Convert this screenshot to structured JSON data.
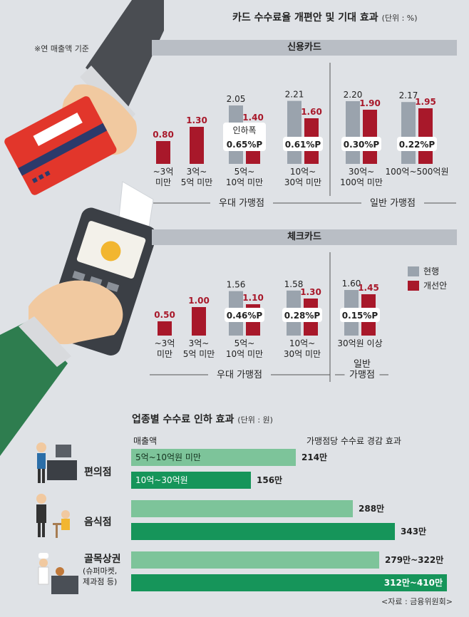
{
  "colors": {
    "current": "#9aa3ad",
    "improved": "#a8182a",
    "bar_light": "#7dc49a",
    "bar_dark": "#16955a"
  },
  "header": {
    "title": "카드 수수료율 개편안 및 기대 효과",
    "unit": "(단위 : %)",
    "note": "※연 매출액 기준"
  },
  "credit": {
    "band": "신용카드"
  },
  "check": {
    "band": "체크카드"
  },
  "legend": {
    "current": "현행",
    "improved": "개선안"
  },
  "groups": {
    "preferred": "우대 가맹점",
    "general": "일반 가맹점",
    "general_two_line": [
      "일반",
      "가맹점"
    ]
  },
  "reduction_prefix": "인하폭",
  "chart_data": [
    {
      "type": "bar",
      "title": "신용카드",
      "categories": [
        [
          "~3억",
          "미만"
        ],
        [
          "3억~",
          "5억 미만"
        ],
        [
          "5억~",
          "10억 미만"
        ],
        [
          "10억~",
          "30억 미만"
        ],
        [
          "30억~",
          "100억 미만"
        ],
        [
          "100억~500억원"
        ]
      ],
      "series": [
        {
          "name": "현행",
          "values": [
            null,
            null,
            2.05,
            2.21,
            2.2,
            2.17
          ]
        },
        {
          "name": "개선안",
          "values": [
            0.8,
            1.3,
            1.4,
            1.6,
            1.9,
            1.95
          ]
        }
      ],
      "value_labels": [
        {
          "cur": null,
          "imp": "0.80"
        },
        {
          "cur": null,
          "imp": "1.30"
        },
        {
          "cur": "2.05",
          "imp": "1.40"
        },
        {
          "cur": "2.21",
          "imp": "1.60"
        },
        {
          "cur": "2.20",
          "imp": "1.90"
        },
        {
          "cur": "2.17",
          "imp": "1.95"
        }
      ],
      "reductions": [
        null,
        null,
        "0.65%P",
        "0.61%P",
        "0.30%P",
        "0.22%P"
      ],
      "unit": "%"
    },
    {
      "type": "bar",
      "title": "체크카드",
      "categories": [
        [
          "~3억",
          "미만"
        ],
        [
          "3억~",
          "5억 미만"
        ],
        [
          "5억~",
          "10억 미만"
        ],
        [
          "10억~",
          "30억 미만"
        ],
        [
          "30억원 이상"
        ]
      ],
      "series": [
        {
          "name": "현행",
          "values": [
            null,
            null,
            1.56,
            1.58,
            1.6
          ]
        },
        {
          "name": "개선안",
          "values": [
            0.5,
            1.0,
            1.1,
            1.3,
            1.45
          ]
        }
      ],
      "value_labels": [
        {
          "cur": null,
          "imp": "0.50"
        },
        {
          "cur": null,
          "imp": "1.00"
        },
        {
          "cur": "1.56",
          "imp": "1.10"
        },
        {
          "cur": "1.58",
          "imp": "1.30"
        },
        {
          "cur": "1.60",
          "imp": "1.45"
        }
      ],
      "reductions": [
        null,
        null,
        "0.46%P",
        "0.28%P",
        "0.15%P"
      ],
      "unit": "%"
    },
    {
      "type": "bar",
      "title": "업종별 수수료 인하 효과",
      "unit": "(단위 : 원)",
      "col_left": "매출액",
      "col_right": "가맹점당 수수료 경감 효과",
      "industries": [
        {
          "name": "편의점",
          "sub": null,
          "bars": [
            {
              "label": "5억~10억원 미만",
              "value_text": "214만",
              "value": 214
            },
            {
              "label": "10억~30억원",
              "value_text": "156만",
              "value": 156
            }
          ]
        },
        {
          "name": "음식점",
          "sub": null,
          "bars": [
            {
              "label": "",
              "value_text": "288만",
              "value": 288
            },
            {
              "label": "",
              "value_text": "343만",
              "value": 343
            }
          ]
        },
        {
          "name": "골목상권",
          "sub": [
            "(슈퍼마켓,",
            "제과점 등)"
          ],
          "bars": [
            {
              "label": "",
              "value_text": "279만~322만",
              "value": [
                279,
                322
              ]
            },
            {
              "label": "",
              "value_text": "312만~410만",
              "value": [
                312,
                410
              ]
            }
          ]
        }
      ]
    }
  ],
  "source": "<자료 : 금융위원회>"
}
